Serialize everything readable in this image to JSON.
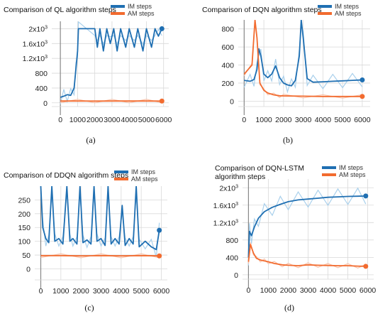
{
  "colors": {
    "im": "#1f6fb2",
    "im_light": "#a9d0ec",
    "am": "#f26b2f",
    "am_light": "#f8c3ab",
    "grid": "#d9d9d9"
  },
  "chart_data": [
    {
      "id": "a",
      "type": "line",
      "title": [
        "Comparison of QL algorithm steps"
      ],
      "caption": "(a)",
      "xlim": [
        -500,
        6300
      ],
      "ylim": [
        -100,
        2200
      ],
      "x_ticks": [
        0,
        1000,
        2000,
        3000,
        4000,
        5000,
        6000
      ],
      "y_ticks": [
        {
          "v": 0,
          "base": "0"
        },
        {
          "v": 400,
          "base": "400"
        },
        {
          "v": 800,
          "base": "800"
        },
        {
          "v": 1200,
          "base": "1.2x10",
          "exp": "3"
        },
        {
          "v": 1600,
          "base": "1.6x10",
          "exp": "3"
        },
        {
          "v": 2000,
          "base": "2x10",
          "exp": "3"
        }
      ],
      "legend": [
        "IM steps",
        "AM steps"
      ],
      "series": [
        {
          "name": "IM steps",
          "points": [
            [
              0,
              150
            ],
            [
              200,
              180
            ],
            [
              400,
              220
            ],
            [
              600,
              200
            ],
            [
              800,
              400
            ],
            [
              900,
              900
            ],
            [
              1000,
              1400
            ],
            [
              1050,
              2000
            ],
            [
              2000,
              2000
            ],
            [
              2150,
              1500
            ],
            [
              2300,
              2000
            ],
            [
              2500,
              1400
            ],
            [
              2700,
              2000
            ],
            [
              2900,
              1600
            ],
            [
              3100,
              2000
            ],
            [
              3300,
              1400
            ],
            [
              3500,
              2000
            ],
            [
              3800,
              1500
            ],
            [
              4000,
              2000
            ],
            [
              4300,
              1500
            ],
            [
              4500,
              2000
            ],
            [
              4800,
              1400
            ],
            [
              5000,
              2000
            ],
            [
              5300,
              1500
            ],
            [
              5500,
              2000
            ],
            [
              5700,
              1800
            ],
            [
              5900,
              2000
            ]
          ],
          "end": [
            5900,
            2000
          ]
        },
        {
          "name": "AM steps",
          "points": [
            [
              0,
              50
            ],
            [
              1000,
              50
            ],
            [
              2000,
              48
            ],
            [
              3000,
              50
            ],
            [
              4000,
              49
            ],
            [
              5000,
              50
            ],
            [
              5900,
              48
            ]
          ],
          "end": [
            5900,
            48
          ]
        }
      ]
    },
    {
      "id": "b",
      "type": "line",
      "title": [
        "Comparison of DQN algorithm steps"
      ],
      "caption": "(b)",
      "xlim": [
        -300,
        6400
      ],
      "ylim": [
        -60,
        900
      ],
      "x_ticks": [
        0,
        1000,
        2000,
        3000,
        4000,
        5000,
        6000
      ],
      "y_ticks": [
        {
          "v": 0,
          "base": "0"
        },
        {
          "v": 200,
          "base": "200"
        },
        {
          "v": 400,
          "base": "400"
        },
        {
          "v": 600,
          "base": "600"
        },
        {
          "v": 800,
          "base": "800"
        }
      ],
      "legend": [
        "IM steps",
        "AM steps"
      ],
      "series": [
        {
          "name": "IM steps",
          "points": [
            [
              0,
              230
            ],
            [
              300,
              220
            ],
            [
              500,
              240
            ],
            [
              650,
              350
            ],
            [
              750,
              580
            ],
            [
              850,
              500
            ],
            [
              1000,
              300
            ],
            [
              1200,
              260
            ],
            [
              1400,
              300
            ],
            [
              1600,
              390
            ],
            [
              1800,
              260
            ],
            [
              2000,
              200
            ],
            [
              2200,
              180
            ],
            [
              2400,
              170
            ],
            [
              2600,
              230
            ],
            [
              2800,
              500
            ],
            [
              2900,
              900
            ],
            [
              3000,
              700
            ],
            [
              3200,
              250
            ],
            [
              3500,
              210
            ],
            [
              4000,
              215
            ],
            [
              4500,
              220
            ],
            [
              5000,
              225
            ],
            [
              5500,
              230
            ],
            [
              6000,
              235
            ]
          ],
          "end": [
            6000,
            235
          ]
        },
        {
          "name": "AM steps",
          "points": [
            [
              0,
              300
            ],
            [
              400,
              400
            ],
            [
              550,
              900
            ],
            [
              650,
              700
            ],
            [
              800,
              200
            ],
            [
              1000,
              120
            ],
            [
              1200,
              90
            ],
            [
              1500,
              70
            ],
            [
              1800,
              60
            ],
            [
              2000,
              58
            ],
            [
              3000,
              55
            ],
            [
              4000,
              52
            ],
            [
              5000,
              52
            ],
            [
              6000,
              52
            ]
          ],
          "end": [
            6000,
            52
          ]
        }
      ]
    },
    {
      "id": "c",
      "type": "line",
      "title": [
        "Comparison of DDQN algorithm steps"
      ],
      "caption": "(c)",
      "xlim": [
        -300,
        6300
      ],
      "ylim": [
        -40,
        300
      ],
      "x_ticks": [
        0,
        1000,
        2000,
        3000,
        4000,
        5000,
        6000
      ],
      "y_ticks": [
        {
          "v": 0,
          "base": "0"
        },
        {
          "v": 50,
          "base": "50"
        },
        {
          "v": 100,
          "base": "100"
        },
        {
          "v": 150,
          "base": "150"
        },
        {
          "v": 200,
          "base": "200"
        },
        {
          "v": 250,
          "base": "250"
        }
      ],
      "legend": [
        "IM steps",
        "AM steps"
      ],
      "series": [
        {
          "name": "IM steps",
          "points": [
            [
              0,
              300
            ],
            [
              100,
              150
            ],
            [
              250,
              110
            ],
            [
              400,
              95
            ],
            [
              550,
              300
            ],
            [
              700,
              100
            ],
            [
              900,
              110
            ],
            [
              1100,
              90
            ],
            [
              1300,
              300
            ],
            [
              1450,
              100
            ],
            [
              1600,
              110
            ],
            [
              1800,
              90
            ],
            [
              1950,
              300
            ],
            [
              2100,
              95
            ],
            [
              2300,
              105
            ],
            [
              2500,
              90
            ],
            [
              2650,
              300
            ],
            [
              2800,
              100
            ],
            [
              3000,
              110
            ],
            [
              3200,
              85
            ],
            [
              3350,
              300
            ],
            [
              3500,
              90
            ],
            [
              3700,
              110
            ],
            [
              3900,
              90
            ],
            [
              4050,
              230
            ],
            [
              4200,
              85
            ],
            [
              4400,
              110
            ],
            [
              4600,
              90
            ],
            [
              4750,
              300
            ],
            [
              4900,
              80
            ],
            [
              5200,
              100
            ],
            [
              5500,
              80
            ],
            [
              5750,
              70
            ],
            [
              5900,
              140
            ]
          ],
          "end": [
            5900,
            140
          ]
        },
        {
          "name": "AM steps",
          "points": [
            [
              0,
              48
            ],
            [
              1000,
              48
            ],
            [
              2000,
              47
            ],
            [
              3000,
              48
            ],
            [
              4000,
              47
            ],
            [
              5000,
              48
            ],
            [
              5900,
              47
            ]
          ],
          "end": [
            5900,
            47
          ]
        }
      ]
    },
    {
      "id": "d",
      "type": "line",
      "title": [
        "Comparison of DQN-LSTM",
        "algorithm steps"
      ],
      "caption": "(d)",
      "xlim": [
        -300,
        6300
      ],
      "ylim": [
        -100,
        2200
      ],
      "x_ticks": [
        0,
        1000,
        2000,
        3000,
        4000,
        5000,
        6000
      ],
      "y_ticks": [
        {
          "v": 0,
          "base": "0"
        },
        {
          "v": 400,
          "base": "400"
        },
        {
          "v": 800,
          "base": "800"
        },
        {
          "v": 1200,
          "base": "1.2x10",
          "exp": "3"
        },
        {
          "v": 1600,
          "base": "1.6x10",
          "exp": "3"
        },
        {
          "v": 2000,
          "base": "2x10",
          "exp": "3"
        }
      ],
      "legend": [
        "IM steps",
        "AM steps"
      ],
      "series": [
        {
          "name": "IM steps",
          "points": [
            [
              0,
              400
            ],
            [
              50,
              1000
            ],
            [
              150,
              900
            ],
            [
              300,
              1100
            ],
            [
              500,
              1300
            ],
            [
              800,
              1450
            ],
            [
              1200,
              1550
            ],
            [
              1600,
              1620
            ],
            [
              2000,
              1680
            ],
            [
              2500,
              1720
            ],
            [
              3000,
              1740
            ],
            [
              3500,
              1760
            ],
            [
              4000,
              1780
            ],
            [
              4500,
              1790
            ],
            [
              5000,
              1800
            ],
            [
              5500,
              1805
            ],
            [
              5900,
              1810
            ]
          ],
          "end": [
            5900,
            1810
          ]
        },
        {
          "name": "AM steps",
          "points": [
            [
              0,
              300
            ],
            [
              100,
              700
            ],
            [
              250,
              500
            ],
            [
              400,
              380
            ],
            [
              600,
              340
            ],
            [
              800,
              320
            ],
            [
              1000,
              300
            ],
            [
              1300,
              260
            ],
            [
              1700,
              230
            ],
            [
              2000,
              220
            ],
            [
              2500,
              210
            ],
            [
              3000,
              230
            ],
            [
              3500,
              220
            ],
            [
              4000,
              215
            ],
            [
              4500,
              210
            ],
            [
              5000,
              210
            ],
            [
              5500,
              200
            ],
            [
              5900,
              195
            ]
          ],
          "end": [
            5900,
            195
          ]
        }
      ]
    }
  ]
}
